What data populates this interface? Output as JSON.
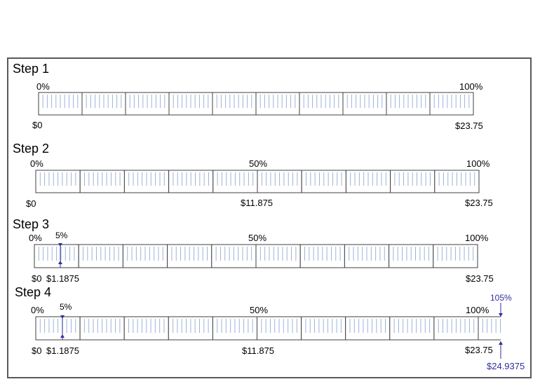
{
  "steps": [
    {
      "title": "Step 1",
      "pct_left": "0%",
      "pct_right": "100%",
      "val_left": "$0",
      "val_right": "$23.75"
    },
    {
      "title": "Step 2",
      "pct_left": "0%",
      "pct_mid": "50%",
      "pct_right": "100%",
      "val_left": "$0",
      "val_mid": "$11.875",
      "val_right": "$23.75"
    },
    {
      "title": "Step 3",
      "pct_left": "0%",
      "pct_small": "5%",
      "pct_mid": "50%",
      "pct_right": "100%",
      "val_left": "$0",
      "val_small": "$1.1875",
      "val_right": "$23.75"
    },
    {
      "title": "Step 4",
      "pct_left": "0%",
      "pct_small": "5%",
      "pct_mid": "50%",
      "pct_right": "100%",
      "pct_extra": "105%",
      "val_left": "$0",
      "val_small": "$1.1875",
      "val_mid": "$11.875",
      "val_right": "$23.75",
      "val_extra": "$24.9375"
    }
  ],
  "colors": {
    "frame": "#595959",
    "bar": "#404040",
    "tick": "#9DB3D8",
    "accent": "#2E2E9E"
  }
}
